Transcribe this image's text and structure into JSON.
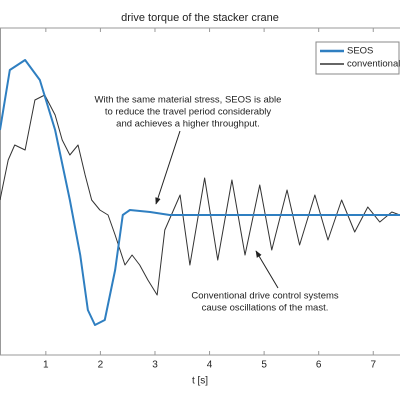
{
  "chart_data": {
    "type": "line",
    "title": "drive torque of the stacker crane",
    "x_label": "t [s]",
    "xlim": [
      0.16,
      7.49
    ],
    "xticks": [
      1,
      2,
      3,
      4,
      5,
      6,
      7
    ],
    "ylim": [
      -1.4,
      1.87
    ],
    "legend": "upper right",
    "series": [
      {
        "name": "SEOS",
        "color": "#2f7fc1",
        "x": [
          0.16,
          0.34,
          0.62,
          0.89,
          1.17,
          1.44,
          1.63,
          1.77,
          1.9,
          2.08,
          2.27,
          2.41,
          2.54,
          2.91,
          3.27,
          7.49
        ],
        "values": [
          0.85,
          1.45,
          1.55,
          1.35,
          0.85,
          0.15,
          -0.4,
          -0.95,
          -1.1,
          -1.05,
          -0.55,
          0,
          0.05,
          0.03,
          0,
          0
        ]
      },
      {
        "name": "conventional",
        "color": "#333333",
        "x": [
          0.16,
          0.31,
          0.43,
          0.62,
          0.8,
          0.98,
          1.17,
          1.3,
          1.44,
          1.59,
          1.72,
          1.84,
          1.99,
          2.14,
          2.27,
          2.45,
          2.58,
          2.72,
          2.87,
          3.04,
          3.18,
          3.46,
          3.64,
          3.91,
          4.15,
          4.41,
          4.65,
          4.92,
          5.14,
          5.42,
          5.65,
          5.93,
          6.17,
          6.42,
          6.66,
          6.9,
          7.12,
          7.34,
          7.49
        ],
        "values": [
          0.15,
          0.55,
          0.7,
          0.65,
          1.15,
          1.2,
          1.0,
          0.75,
          0.6,
          0.7,
          0.4,
          0.15,
          0.05,
          0,
          -0.2,
          -0.5,
          -0.4,
          -0.5,
          -0.65,
          -0.8,
          -0.15,
          0.2,
          -0.5,
          0.37,
          -0.45,
          0.35,
          -0.4,
          0.3,
          -0.35,
          0.25,
          -0.3,
          0.2,
          -0.25,
          0.15,
          -0.17,
          0.08,
          -0.07,
          0.03,
          0
        ]
      }
    ],
    "annotations": [
      [
        "With the same material stress, SEOS is able",
        "to reduce the travel period considerably",
        "and achieves a higher throughput."
      ],
      [
        "Conventional drive control systems",
        "cause oscillations of the mast."
      ]
    ]
  }
}
